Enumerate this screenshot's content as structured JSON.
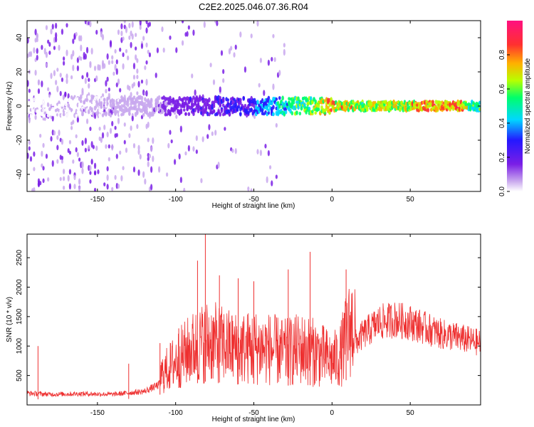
{
  "title": "C2E2.2025.046.07.36.R04",
  "chart_data": [
    {
      "type": "heatmap",
      "xlabel": "Height of straight line (km)",
      "ylabel": "Frequency (Hz)",
      "xlim": [
        -195,
        95
      ],
      "ylim": [
        -50,
        50
      ],
      "xticks": [
        -150,
        -100,
        -50,
        0,
        50
      ],
      "yticks": [
        -40,
        -20,
        0,
        20,
        40
      ],
      "colorbar": {
        "label": "Normalized spectral amplitude",
        "range": [
          0.0,
          1.0
        ],
        "ticks": [
          0.0,
          0.2,
          0.4,
          0.6,
          0.8
        ],
        "colormap": [
          "#ffffff",
          "#c9a8ee",
          "#7a1ee6",
          "#2418ff",
          "#00d7ff",
          "#00ff6a",
          "#b8ff00",
          "#ffb000",
          "#ff3030",
          "#ff1080"
        ]
      },
      "ridge_amplitude": {
        "x": [
          -190,
          -150,
          -120,
          -100,
          -80,
          -60,
          -40,
          -25,
          -10,
          0,
          5,
          10,
          20,
          40,
          60,
          80,
          90
        ],
        "amplitude": [
          0.1,
          0.12,
          0.15,
          0.28,
          0.3,
          0.35,
          0.45,
          0.6,
          0.7,
          0.85,
          0.75,
          0.8,
          0.7,
          0.75,
          0.82,
          0.9,
          0.6
        ]
      }
    },
    {
      "type": "line",
      "xlabel": "Height of straight line (km)",
      "ylabel": "SNR (10 * v/v)",
      "xlim": [
        -195,
        95
      ],
      "ylim": [
        0,
        2900
      ],
      "xticks": [
        -150,
        -100,
        -50,
        0,
        50
      ],
      "yticks": [
        500,
        1000,
        1500,
        2000,
        2500
      ],
      "color": "#ee3030",
      "envelope": {
        "x": [
          -195,
          -180,
          -160,
          -140,
          -120,
          -110,
          -100,
          -90,
          -80,
          -70,
          -60,
          -50,
          -40,
          -30,
          -20,
          -10,
          0,
          5,
          10,
          20,
          30,
          40,
          50,
          60,
          70,
          80,
          95
        ],
        "y": [
          200,
          180,
          190,
          180,
          230,
          350,
          550,
          700,
          800,
          750,
          700,
          720,
          700,
          650,
          700,
          650,
          550,
          600,
          900,
          1200,
          1400,
          1450,
          1400,
          1300,
          1200,
          1150,
          1050
        ]
      },
      "peaks": [
        {
          "x": -188,
          "y": 1000
        },
        {
          "x": -130,
          "y": 700
        },
        {
          "x": -110,
          "y": 1050
        },
        {
          "x": -98,
          "y": 1300
        },
        {
          "x": -86,
          "y": 2450
        },
        {
          "x": -81,
          "y": 2900
        },
        {
          "x": -72,
          "y": 2200
        },
        {
          "x": -60,
          "y": 2150
        },
        {
          "x": -50,
          "y": 2100
        },
        {
          "x": -28,
          "y": 2300
        },
        {
          "x": -14,
          "y": 2600
        },
        {
          "x": 9,
          "y": 2300
        }
      ]
    }
  ]
}
